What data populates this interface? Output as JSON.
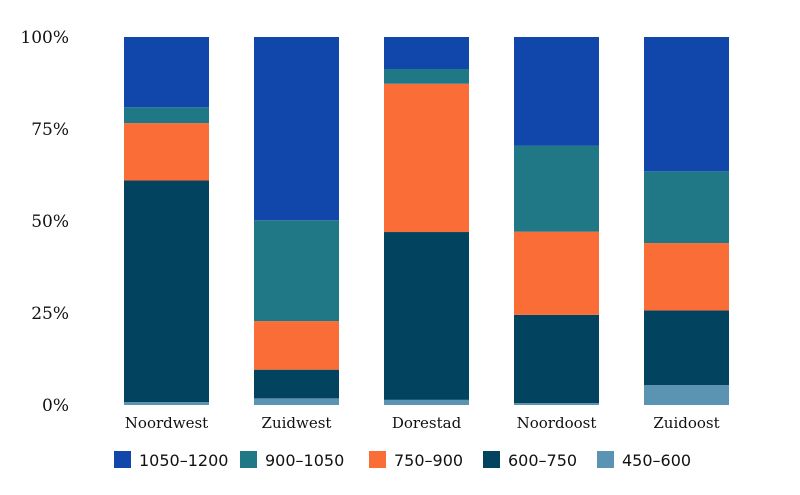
{
  "chart_data": {
    "type": "bar",
    "stacked": true,
    "normalized": true,
    "title": "",
    "xlabel": "",
    "ylabel": "",
    "ylim": [
      0,
      100
    ],
    "y_ticks": [
      "0%",
      "25%",
      "50%",
      "75%",
      "100%"
    ],
    "categories": [
      "Noordwest",
      "Zuidwest",
      "Dorestad",
      "Noordoost",
      "Zuidoost"
    ],
    "series": [
      {
        "name": "450–600",
        "color": "#5b94b3",
        "values": [
          0.8,
          1.8,
          1.4,
          0.5,
          5.4
        ]
      },
      {
        "name": "600–750",
        "color": "#02445f",
        "values": [
          60.2,
          7.8,
          45.6,
          24.0,
          20.3
        ]
      },
      {
        "name": "750–900",
        "color": "#fb6d36",
        "values": [
          15.6,
          13.2,
          40.3,
          22.6,
          18.3
        ]
      },
      {
        "name": "900–1050",
        "color": "#207886",
        "values": [
          4.3,
          27.4,
          4.0,
          23.4,
          19.5
        ]
      },
      {
        "name": "1050–1200",
        "color": "#1147ab",
        "values": [
          19.1,
          49.8,
          8.7,
          29.5,
          36.5
        ]
      }
    ],
    "legend": {
      "position": "bottom",
      "order": [
        "1050–1200",
        "900–1050",
        "750–900",
        "600–750",
        "450–600"
      ]
    },
    "grid": false
  }
}
